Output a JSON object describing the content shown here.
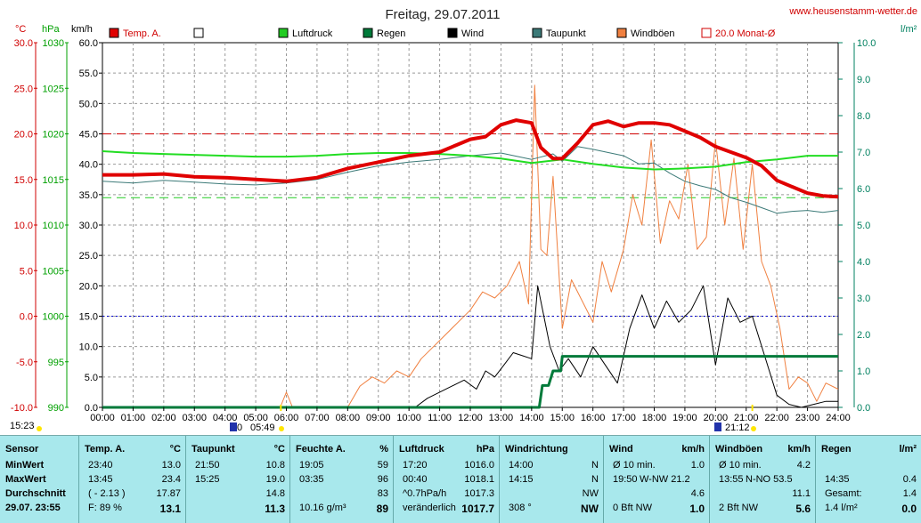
{
  "header": {
    "title": "Freitag, 29.07.2011",
    "website": "www.heusenstamm-wetter.de",
    "unit_celsius": "°C",
    "unit_hpa": "hPa",
    "unit_kmh": "km/h",
    "unit_rain": "l/m²"
  },
  "legend": [
    {
      "label": "Temp. A.",
      "color": "#e00000",
      "style": "box"
    },
    {
      "label": "",
      "color": "#ffffff",
      "style": "box"
    },
    {
      "label": "Luftdruck",
      "color": "#22cc22",
      "style": "box"
    },
    {
      "label": "Regen",
      "color": "#007a3a",
      "style": "box"
    },
    {
      "label": "Wind",
      "color": "#000000",
      "style": "box"
    },
    {
      "label": "Taupunkt",
      "color": "#3c7a78",
      "style": "box"
    },
    {
      "label": "Windböen",
      "color": "#f08040",
      "style": "box"
    },
    {
      "label": "20.0 Monat-Ø",
      "color": "#d00000",
      "style": "open"
    }
  ],
  "sun_labels": {
    "sunrise_left": "15:23",
    "sunrise": "05:49",
    "sunset": "21:12",
    "sunrise_prefix": "0"
  },
  "chart_data": {
    "type": "line",
    "x_unit": "hours",
    "xlim": [
      0,
      24
    ],
    "x_ticks": [
      "00:00",
      "01:00",
      "02:00",
      "03:00",
      "04:00",
      "05:00",
      "06:00",
      "07:00",
      "08:00",
      "09:00",
      "10:00",
      "11:00",
      "12:00",
      "13:00",
      "14:00",
      "15:00",
      "16:00",
      "17:00",
      "18:00",
      "19:00",
      "20:00",
      "21:00",
      "22:00",
      "23:00",
      "24:00"
    ],
    "axes": {
      "temp_c": {
        "label": "°C",
        "ticks": [
          "30.0",
          "25.0",
          "20.0",
          "15.0",
          "10.0",
          "5.0",
          "0.0",
          "-5.0",
          "-10.0"
        ],
        "ylim": [
          -10,
          30
        ],
        "color": "#d00000"
      },
      "pressure_hpa": {
        "label": "hPa",
        "ticks": [
          "1030",
          "1025",
          "1020",
          "1015",
          "1010",
          "1005",
          "1000",
          "995",
          "990"
        ],
        "ylim": [
          990,
          1030
        ],
        "color": "#00a000"
      },
      "wind_kmh": {
        "label": "km/h",
        "ticks": [
          "60.0",
          "55.0",
          "50.0",
          "45.0",
          "40.0",
          "35.0",
          "30.0",
          "25.0",
          "20.0",
          "15.0",
          "10.0",
          "5.0",
          "0.0"
        ],
        "ylim": [
          0,
          60
        ],
        "color": "#000000"
      },
      "rain_lm2": {
        "label": "l/m²",
        "ticks": [
          "10.0",
          "9.0",
          "8.0",
          "7.0",
          "6.0",
          "5.0",
          "4.0",
          "3.0",
          "2.0",
          "1.0",
          "0.0"
        ],
        "ylim": [
          0,
          10
        ],
        "color": "#008060"
      }
    },
    "reference_lines": [
      {
        "name": "Monat-Ø",
        "axis": "temp_c",
        "value": 20.0,
        "color": "#d00000",
        "dash": "dash"
      },
      {
        "name": "zero",
        "axis": "temp_c",
        "value": 0.0,
        "color": "#0000cc",
        "dash": "dot"
      },
      {
        "name": "low",
        "axis": "temp_c",
        "value": 13.0,
        "color": "#22cc22",
        "dash": "dash"
      }
    ],
    "series": [
      {
        "name": "Temp. A.",
        "axis": "temp_c",
        "color": "#e00000",
        "width": 4,
        "x": [
          0,
          1,
          2,
          3,
          4,
          5,
          6,
          7,
          8,
          9,
          10,
          11,
          12,
          12.5,
          13,
          13.5,
          14,
          14.3,
          14.7,
          15,
          15.5,
          16,
          16.5,
          17,
          17.5,
          18,
          18.5,
          19,
          19.5,
          20,
          20.5,
          21,
          21.5,
          22,
          22.5,
          23,
          23.5,
          24
        ],
        "y": [
          15.5,
          15.5,
          15.6,
          15.3,
          15.2,
          15.0,
          14.8,
          15.2,
          16.2,
          16.9,
          17.6,
          18.0,
          19.4,
          19.7,
          21.0,
          21.5,
          21.2,
          18.5,
          17.3,
          17.3,
          19.0,
          21.0,
          21.4,
          20.8,
          21.2,
          21.2,
          21.0,
          20.3,
          19.6,
          18.6,
          18.0,
          17.4,
          16.5,
          14.9,
          14.2,
          13.5,
          13.2,
          13.1
        ]
      },
      {
        "name": "Taupunkt",
        "axis": "temp_c",
        "color": "#3c7a78",
        "width": 1,
        "x": [
          0,
          1,
          2,
          3,
          4,
          5,
          6,
          7,
          8,
          9,
          10,
          11,
          12,
          13,
          14,
          14.7,
          15,
          15.5,
          16,
          17,
          17.5,
          18,
          18.5,
          19,
          19.5,
          20,
          20.5,
          21,
          21.5,
          22,
          22.5,
          23,
          23.5,
          24
        ],
        "y": [
          14.8,
          14.6,
          14.9,
          14.7,
          14.5,
          14.4,
          14.6,
          15.0,
          15.8,
          16.5,
          16.9,
          17.2,
          17.6,
          17.9,
          17.2,
          17.8,
          17.0,
          18.6,
          18.3,
          17.6,
          16.7,
          16.8,
          15.7,
          14.8,
          14.3,
          13.9,
          13.0,
          12.5,
          11.9,
          11.3,
          11.5,
          11.6,
          11.4,
          11.6
        ]
      },
      {
        "name": "Luftdruck",
        "axis": "pressure_hpa",
        "color": "#22dd22",
        "width": 2,
        "x": [
          0,
          1,
          2,
          3,
          4,
          5,
          6,
          7,
          8,
          9,
          10,
          11,
          12,
          13,
          14,
          14.5,
          15,
          16,
          17,
          18,
          19,
          20,
          21,
          22,
          23,
          24
        ],
        "y": [
          1018.1,
          1017.9,
          1017.8,
          1017.7,
          1017.6,
          1017.5,
          1017.5,
          1017.6,
          1017.8,
          1017.9,
          1017.9,
          1017.8,
          1017.6,
          1017.3,
          1016.8,
          1017.0,
          1017.2,
          1016.7,
          1016.3,
          1016.1,
          1016.2,
          1016.4,
          1016.9,
          1017.2,
          1017.6,
          1017.6
        ]
      },
      {
        "name": "Regen",
        "axis": "rain_lm2",
        "color": "#007a3a",
        "width": 3,
        "x": [
          0,
          14.0,
          14.25,
          14.35,
          14.55,
          14.7,
          14.95,
          15.0,
          24
        ],
        "y": [
          0,
          0,
          0,
          0.6,
          0.6,
          1.0,
          1.0,
          1.4,
          1.4
        ]
      },
      {
        "name": "Wind",
        "axis": "wind_kmh",
        "color": "#000000",
        "width": 1,
        "x": [
          0,
          10.2,
          10.6,
          11,
          11.4,
          11.8,
          12.2,
          12.5,
          12.8,
          13.1,
          13.4,
          13.7,
          14.0,
          14.2,
          14.4,
          14.6,
          14.9,
          15.2,
          15.6,
          16,
          16.4,
          16.8,
          17.2,
          17.6,
          18,
          18.4,
          18.8,
          19.2,
          19.6,
          20.0,
          20.4,
          20.8,
          21.2,
          21.6,
          22.0,
          22.4,
          22.8,
          23.2,
          23.6,
          24
        ],
        "y": [
          0,
          0,
          1.5,
          2.5,
          3.5,
          4.5,
          3.0,
          6.0,
          5.0,
          7.0,
          9.0,
          8.5,
          8.0,
          20.0,
          15.0,
          10.0,
          6.0,
          8.0,
          5.0,
          10.0,
          7.0,
          4.0,
          13.0,
          18.5,
          13.0,
          17.5,
          14.0,
          16.0,
          20.0,
          7.0,
          18.0,
          14.0,
          15.0,
          8.5,
          2.0,
          0.5,
          0,
          0.5,
          1.0,
          1.0
        ]
      },
      {
        "name": "Windböen",
        "axis": "wind_kmh",
        "color": "#f08040",
        "width": 1,
        "x": [
          0,
          5.8,
          6.0,
          6.2,
          8.0,
          8.4,
          8.8,
          9.2,
          9.6,
          10.0,
          10.4,
          10.8,
          11.2,
          11.6,
          12.0,
          12.4,
          12.8,
          13.2,
          13.6,
          13.9,
          14.1,
          14.3,
          14.5,
          14.7,
          15.0,
          15.3,
          15.6,
          16.0,
          16.3,
          16.6,
          17.0,
          17.3,
          17.6,
          17.9,
          18.2,
          18.5,
          18.8,
          19.1,
          19.4,
          19.7,
          20.0,
          20.3,
          20.6,
          20.9,
          21.2,
          21.5,
          21.8,
          22.1,
          22.4,
          22.7,
          23.0,
          23.3,
          23.6,
          24
        ],
        "y": [
          0,
          0,
          2.5,
          0,
          0,
          3.5,
          5.0,
          4.0,
          6.0,
          5.0,
          8.0,
          10.0,
          12.0,
          14.0,
          16.0,
          19.0,
          18.0,
          20.0,
          24.0,
          17.0,
          53.0,
          26.0,
          25.0,
          38.0,
          13.0,
          21.0,
          18.0,
          14.0,
          24.0,
          19.0,
          26.0,
          35.0,
          30.0,
          44.0,
          27.0,
          34.0,
          31.0,
          40.0,
          26.0,
          28.0,
          44.0,
          30.0,
          41.0,
          26.0,
          40.0,
          24.0,
          20.0,
          13.0,
          3.0,
          5.0,
          4.0,
          1.0,
          4.0,
          3.0
        ]
      }
    ]
  },
  "table": {
    "columns": [
      {
        "head": "Sensor",
        "unit": "",
        "rows": [
          "MinWert",
          "MaxWert",
          "Durchschnitt",
          "29.07.  23:55"
        ]
      },
      {
        "head": "Temp. A.",
        "unit": "°C",
        "rows_l": [
          "23:40",
          "13:45",
          "( - 2.13 )",
          "F: 89 %"
        ],
        "rows_r": [
          "13.0",
          "23.4",
          "17.87",
          "13.1"
        ]
      },
      {
        "head": "Taupunkt",
        "unit": "°C",
        "rows_l": [
          "21:50",
          "15:25",
          "",
          ""
        ],
        "rows_r": [
          "10.8",
          "19.0",
          "14.8",
          "11.3"
        ]
      },
      {
        "head": "Feuchte A.",
        "unit": "%",
        "rows_l": [
          "19:05",
          "03:35",
          "",
          "10.16 g/m³"
        ],
        "rows_r": [
          "59",
          "96",
          "83",
          "89"
        ]
      },
      {
        "head": "Luftdruck",
        "unit": "hPa",
        "rows_l": [
          "17:20",
          "00:40",
          "^0.7hPa/h",
          "veränderlich"
        ],
        "rows_r": [
          "1016.0",
          "1018.1",
          "1017.3",
          "1017.7"
        ]
      },
      {
        "head": "Windrichtung",
        "unit": "",
        "rows_l": [
          "14:00",
          "14:15",
          "",
          "308 °"
        ],
        "rows_r": [
          "N",
          "N",
          "NW",
          "NW"
        ]
      },
      {
        "head": "Wind",
        "unit": "km/h",
        "rows_l": [
          "Ø 10 min.",
          "19:50",
          "",
          "0 Bft NW"
        ],
        "rows_m": [
          "",
          "W-NW 21.2",
          "",
          ""
        ],
        "rows_r": [
          "1.0",
          "",
          "4.6",
          "1.0"
        ]
      },
      {
        "head": "Windböen",
        "unit": "km/h",
        "rows_l": [
          "Ø 10 min.",
          "13:55",
          "",
          "2 Bft NW"
        ],
        "rows_m": [
          "",
          "N-NO 53.5",
          "",
          ""
        ],
        "rows_r": [
          "4.2",
          "",
          "11.1",
          "5.6"
        ]
      },
      {
        "head": "Regen",
        "unit": "l/m²",
        "rows_l": [
          "",
          "14:35",
          "Gesamt:",
          "1.4 l/m²"
        ],
        "rows_r": [
          "",
          "0.4",
          "1.4",
          "0.0"
        ]
      }
    ]
  }
}
